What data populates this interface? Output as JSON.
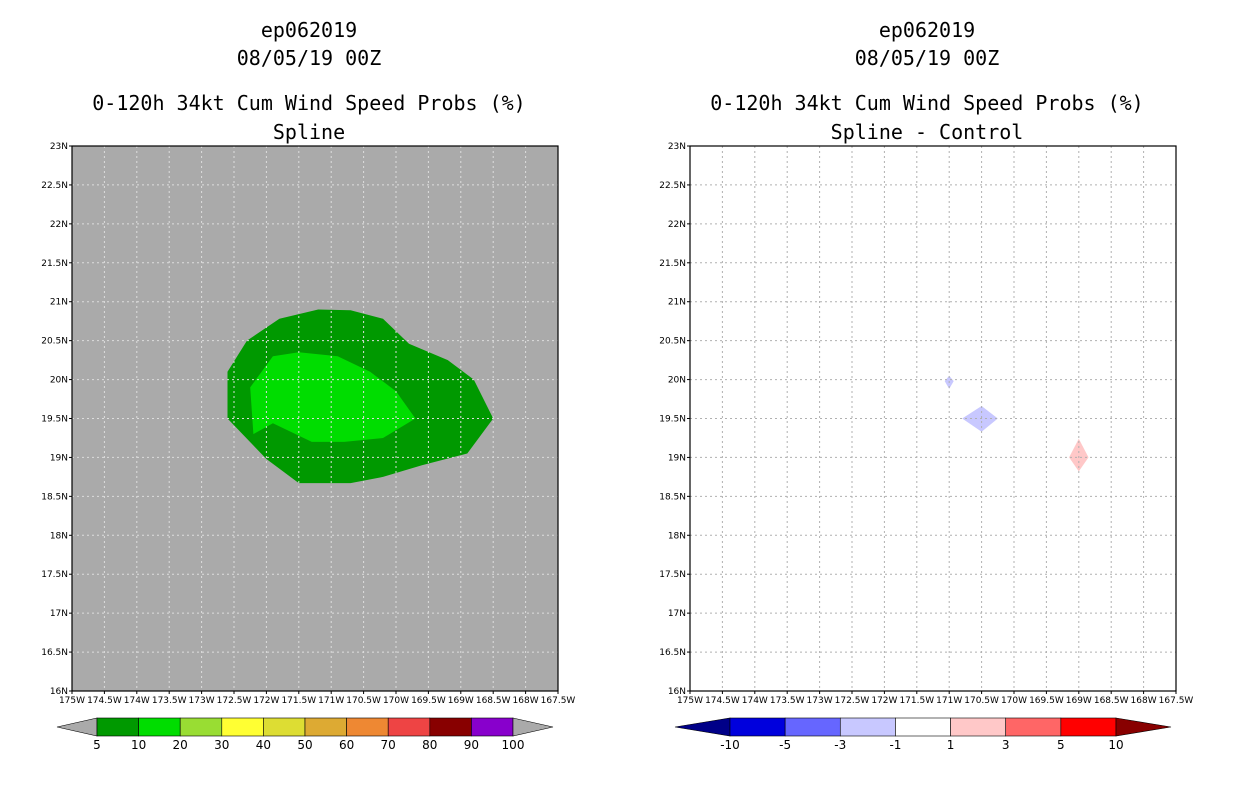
{
  "chart_data": [
    {
      "type": "heatmap",
      "name": "spline",
      "storm_id": "ep062019",
      "datetime": "08/05/19 00Z",
      "title": "0-120h 34kt Cum Wind Speed Probs (%)",
      "subtitle": "Spline",
      "xlim": [
        -175,
        -167.5
      ],
      "ylim": [
        16,
        23
      ],
      "x_ticks": [
        "175W",
        "174.5W",
        "174W",
        "173.5W",
        "173W",
        "172.5W",
        "172W",
        "171.5W",
        "171W",
        "170.5W",
        "170W",
        "169.5W",
        "169W",
        "168.5W",
        "168W",
        "167.5W"
      ],
      "y_ticks": [
        "16N",
        "16.5N",
        "17N",
        "17.5N",
        "18N",
        "18.5N",
        "19N",
        "19.5N",
        "20N",
        "20.5N",
        "21N",
        "21.5N",
        "22N",
        "22.5N",
        "23N"
      ],
      "grid": true,
      "background_color": "#aaaaaa",
      "contours": [
        {
          "level": "5-10",
          "color": "#009900",
          "points": [
            [
              -172.6,
              19.6
            ],
            [
              -172.6,
              20.1
            ],
            [
              -172.3,
              20.5
            ],
            [
              -171.8,
              20.78
            ],
            [
              -171.2,
              20.9
            ],
            [
              -170.7,
              20.89
            ],
            [
              -170.2,
              20.78
            ],
            [
              -169.8,
              20.46
            ],
            [
              -169.2,
              20.25
            ],
            [
              -168.8,
              20.0
            ],
            [
              -168.5,
              19.5
            ],
            [
              -168.9,
              19.05
            ],
            [
              -169.6,
              18.9
            ],
            [
              -170.2,
              18.75
            ],
            [
              -170.7,
              18.67
            ],
            [
              -171.5,
              18.67
            ],
            [
              -172.0,
              18.98
            ],
            [
              -172.6,
              19.5
            ]
          ]
        },
        {
          "level": "10-20",
          "color": "#00dd00",
          "points": [
            [
              -172.2,
              19.3
            ],
            [
              -172.25,
              19.9
            ],
            [
              -171.9,
              20.3
            ],
            [
              -171.5,
              20.35
            ],
            [
              -170.9,
              20.3
            ],
            [
              -170.4,
              20.1
            ],
            [
              -170.0,
              19.85
            ],
            [
              -169.7,
              19.5
            ],
            [
              -170.2,
              19.25
            ],
            [
              -170.8,
              19.2
            ],
            [
              -171.3,
              19.2
            ],
            [
              -171.9,
              19.44
            ]
          ]
        }
      ],
      "colorbar": {
        "labels": [
          "5",
          "10",
          "20",
          "30",
          "40",
          "50",
          "60",
          "70",
          "80",
          "90",
          "100"
        ],
        "colors": [
          "#009900",
          "#00dd00",
          "#99dd33",
          "#ffff33",
          "#dddd33",
          "#ddaa33",
          "#ee8833",
          "#ee4444",
          "#880000",
          "#8800cc"
        ],
        "under_color": "#aaaaaa",
        "over_color": "#aaaaaa"
      }
    },
    {
      "type": "heatmap",
      "name": "difference",
      "storm_id": "ep062019",
      "datetime": "08/05/19 00Z",
      "title": "0-120h 34kt Cum Wind Speed Probs (%)",
      "subtitle": "Spline - Control",
      "xlim": [
        -175,
        -167.5
      ],
      "ylim": [
        16,
        23
      ],
      "x_ticks": [
        "175W",
        "174.5W",
        "174W",
        "173.5W",
        "173W",
        "172.5W",
        "172W",
        "171.5W",
        "171W",
        "170.5W",
        "170W",
        "169.5W",
        "169W",
        "168.5W",
        "168W",
        "167.5W"
      ],
      "y_ticks": [
        "16N",
        "16.5N",
        "17N",
        "17.5N",
        "18N",
        "18.5N",
        "19N",
        "19.5N",
        "20N",
        "20.5N",
        "21N",
        "21.5N",
        "22N",
        "22.5N",
        "23N"
      ],
      "grid": true,
      "background_color": "#ffffff",
      "contours": [
        {
          "level": "-3 to -1",
          "color": "#c8c8ff",
          "points": [
            [
              -171.07,
              19.98
            ],
            [
              -171.0,
              20.05
            ],
            [
              -170.93,
              19.98
            ],
            [
              -171.0,
              19.88
            ]
          ]
        },
        {
          "level": "-3 to -1",
          "color": "#c8c8ff",
          "points": [
            [
              -170.8,
              19.5
            ],
            [
              -170.5,
              19.66
            ],
            [
              -170.25,
              19.5
            ],
            [
              -170.5,
              19.33
            ]
          ]
        },
        {
          "level": "1 to 3",
          "color": "#ffc8c8",
          "points": [
            [
              -169.15,
              19.0
            ],
            [
              -169.0,
              19.24
            ],
            [
              -168.85,
              19.0
            ],
            [
              -169.0,
              18.82
            ]
          ]
        }
      ],
      "colorbar": {
        "labels": [
          "-10",
          "-5",
          "-3",
          "-1",
          "1",
          "3",
          "5",
          "10"
        ],
        "colors": [
          "#0000dd",
          "#6666ff",
          "#c8c8ff",
          "#ffffff",
          "#ffc8c8",
          "#ff6666",
          "#ff0000"
        ],
        "under_color": "#000088",
        "over_color": "#880000"
      }
    }
  ]
}
